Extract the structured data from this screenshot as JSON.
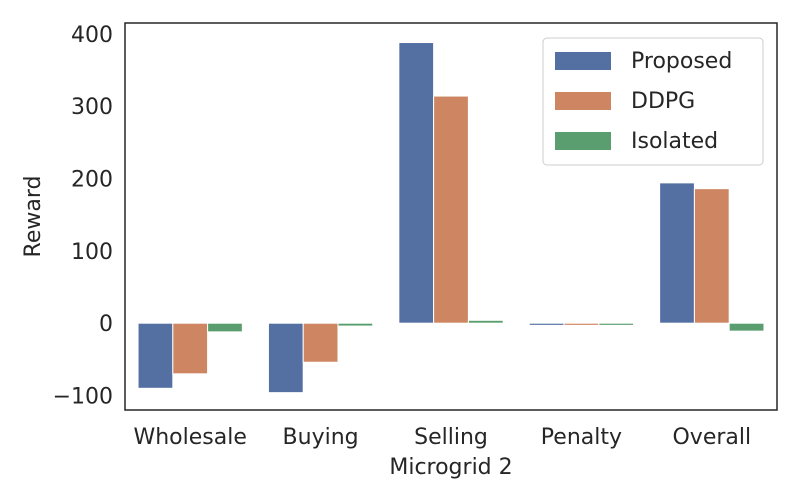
{
  "chart_data": {
    "type": "bar",
    "xlabel": "Microgrid 2",
    "ylabel": "Reward",
    "categories": [
      "Wholesale",
      "Buying",
      "Selling",
      "Penalty",
      "Overall"
    ],
    "ylim": [
      -120,
      415
    ],
    "yticks": [
      -100,
      0,
      100,
      200,
      300,
      400
    ],
    "ytick_labels": [
      "−100",
      "0",
      "100",
      "200",
      "300",
      "400"
    ],
    "grid": false,
    "legend_position": "top-right",
    "series": [
      {
        "name": "Proposed",
        "color": "#5470a3",
        "values": [
          -90,
          -96,
          388,
          -3,
          194
        ]
      },
      {
        "name": "DDPG",
        "color": "#cd8661",
        "values": [
          -70,
          -54,
          314,
          -3,
          186
        ]
      },
      {
        "name": "Isolated",
        "color": "#5a9e6f",
        "values": [
          -12,
          -4,
          4,
          -3,
          -11
        ]
      }
    ]
  }
}
